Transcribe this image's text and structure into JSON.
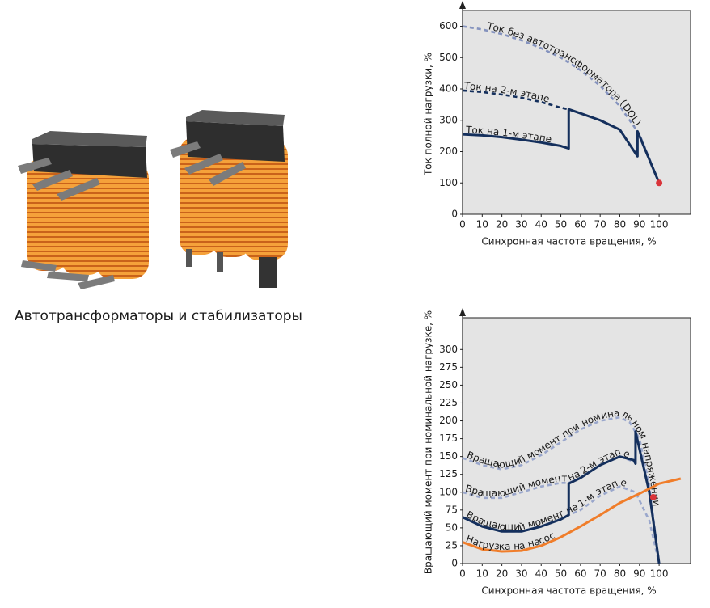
{
  "caption": "Автотрансформаторы и стабилизаторы",
  "chart_data": [
    {
      "type": "line",
      "ylabel": "Ток полной нагрузки, %",
      "xlabel": "Синхронная частота вращения, %",
      "xlim": [
        0,
        116
      ],
      "ylim": [
        0,
        640
      ],
      "xticks": [
        0,
        10,
        20,
        30,
        40,
        50,
        60,
        70,
        80,
        90,
        100
      ],
      "yticks": [
        0,
        100,
        200,
        300,
        400,
        500,
        600
      ],
      "series": [
        {
          "name": "Ток без автотрансформатора (DOL)",
          "color": "#8593be",
          "dash": true,
          "x": [
            0,
            10,
            20,
            30,
            40,
            50,
            60,
            70,
            80,
            90,
            100
          ],
          "values": [
            600,
            590,
            575,
            555,
            530,
            500,
            460,
            410,
            345,
            255,
            100
          ]
        },
        {
          "name": "Ток на 2-м этапе",
          "color": "#142f5c",
          "dash": true,
          "x": [
            0,
            10,
            20,
            30,
            40,
            50,
            54
          ],
          "values": [
            395,
            390,
            382,
            372,
            358,
            340,
            335
          ]
        },
        {
          "name": "Ток на 1-м этапе",
          "color": "#142f5c",
          "dash": false,
          "x": [
            0,
            10,
            20,
            30,
            40,
            50,
            54,
            54,
            60,
            70,
            80,
            89,
            89,
            100
          ],
          "values": [
            255,
            252,
            246,
            238,
            229,
            218,
            210,
            335,
            322,
            300,
            270,
            185,
            265,
            100
          ]
        }
      ],
      "point": {
        "x": 100,
        "y": 100,
        "color": "#d9343a"
      }
    },
    {
      "type": "line",
      "ylabel": "Вращающий момент при номинальной нагрузке, %",
      "xlabel": "Синхронная частота вращения, %",
      "xlim": [
        0,
        116
      ],
      "ylim": [
        0,
        340
      ],
      "xticks": [
        0,
        10,
        20,
        30,
        40,
        50,
        60,
        70,
        80,
        90,
        100
      ],
      "yticks": [
        0,
        25,
        50,
        75,
        100,
        125,
        150,
        175,
        200,
        225,
        250,
        275,
        300
      ],
      "series": [
        {
          "name": "Вращающий момент при номинальном напряжении",
          "color": "#9aa7cc",
          "dash": true,
          "x": [
            0,
            10,
            20,
            30,
            40,
            50,
            60,
            70,
            80,
            85,
            90,
            95,
            100
          ],
          "values": [
            148,
            138,
            132,
            138,
            152,
            170,
            188,
            200,
            205,
            198,
            175,
            110,
            0
          ]
        },
        {
          "name": "Вращающий момент на 2-м этапе",
          "color": "#9aa7cc",
          "dash": true,
          "x": [
            0,
            10,
            20,
            30,
            40,
            50,
            54,
            60,
            70,
            80,
            88
          ],
          "values": [
            100,
            92,
            92,
            100,
            108,
            113,
            113,
            120,
            138,
            150,
            142
          ]
        },
        {
          "name": "Вращающий момент на 1-м этапе",
          "color": "#9aa7cc",
          "dash": true,
          "x": [
            0,
            10,
            20,
            30,
            40,
            50,
            54,
            60,
            70,
            80,
            88,
            95,
            100
          ],
          "values": [
            65,
            52,
            45,
            45,
            52,
            62,
            68,
            75,
            95,
            108,
            100,
            60,
            0
          ]
        },
        {
          "color": "#142f5c",
          "dash": false,
          "x": [
            0,
            10,
            20,
            30,
            40,
            50,
            54,
            54,
            60,
            70,
            80,
            87,
            88,
            88,
            95,
            100
          ],
          "values": [
            65,
            52,
            45,
            45,
            52,
            62,
            68,
            112,
            120,
            138,
            150,
            145,
            140,
            185,
            100,
            0
          ]
        },
        {
          "name": "Нагрузка на насос",
          "color": "#f07d2a",
          "dash": false,
          "x": [
            0,
            10,
            20,
            30,
            40,
            50,
            60,
            70,
            80,
            90,
            100,
            111
          ],
          "values": [
            30,
            20,
            17,
            18,
            25,
            37,
            52,
            68,
            85,
            98,
            112,
            119
          ]
        }
      ],
      "point": {
        "x": 97,
        "y": 93,
        "color": "#d9343a"
      }
    }
  ]
}
